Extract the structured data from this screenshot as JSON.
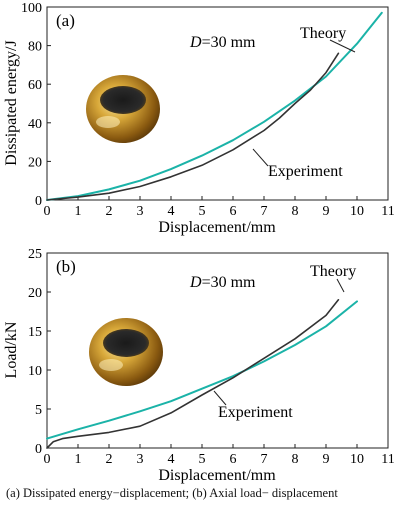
{
  "chart_data": [
    {
      "type": "line",
      "panel_label": "(a)",
      "annotation_param": "D",
      "annotation_value": "=30 mm",
      "xlabel": "Displacement/mm",
      "ylabel": "Dissipated energy/J",
      "xlim": [
        0,
        11
      ],
      "ylim": [
        0,
        100
      ],
      "xticks": [
        0,
        1,
        2,
        3,
        4,
        5,
        6,
        7,
        8,
        9,
        10,
        11
      ],
      "yticks": [
        0,
        20,
        40,
        60,
        80,
        100
      ],
      "series": [
        {
          "name": "Theory",
          "color": "#1bb3a8",
          "x": [
            0,
            1,
            2,
            3,
            4,
            5,
            6,
            7,
            8,
            9,
            10,
            10.8
          ],
          "y": [
            0,
            2,
            5.5,
            10,
            16,
            23,
            31,
            40.5,
            51.5,
            64,
            81,
            97
          ]
        },
        {
          "name": "Experiment",
          "color": "#333333",
          "x": [
            0,
            1,
            2,
            3,
            4,
            5,
            6,
            7,
            7.5,
            8,
            8.5,
            9,
            9.4
          ],
          "y": [
            0,
            1.5,
            3.5,
            7,
            12,
            18,
            26,
            36,
            42.5,
            50,
            57,
            66,
            76
          ]
        }
      ]
    },
    {
      "type": "line",
      "panel_label": "(b)",
      "annotation_param": "D",
      "annotation_value": "=30 mm",
      "xlabel": "Displacement/mm",
      "ylabel": "Load/kN",
      "xlim": [
        0,
        11
      ],
      "ylim": [
        0,
        25
      ],
      "xticks": [
        0,
        1,
        2,
        3,
        4,
        5,
        6,
        7,
        8,
        9,
        10,
        11
      ],
      "yticks": [
        0,
        5,
        10,
        15,
        20,
        25
      ],
      "series": [
        {
          "name": "Theory",
          "color": "#1bb3a8",
          "x": [
            0,
            1,
            2,
            3,
            4,
            5,
            6,
            7,
            8,
            9,
            10
          ],
          "y": [
            1.2,
            2.4,
            3.5,
            4.7,
            6.0,
            7.6,
            9.2,
            11.1,
            13.2,
            15.6,
            18.8
          ]
        },
        {
          "name": "Experiment",
          "color": "#333333",
          "x": [
            0,
            0.2,
            0.5,
            1,
            2,
            3,
            4,
            5,
            6,
            7,
            8,
            9,
            9.4
          ],
          "y": [
            0,
            0.8,
            1.2,
            1.5,
            2.0,
            2.8,
            4.5,
            6.8,
            9.0,
            11.5,
            14.0,
            17.0,
            19.0
          ]
        }
      ]
    }
  ],
  "caption": "(a) Dissipated energy−displacement; (b) Axial load− displacement"
}
